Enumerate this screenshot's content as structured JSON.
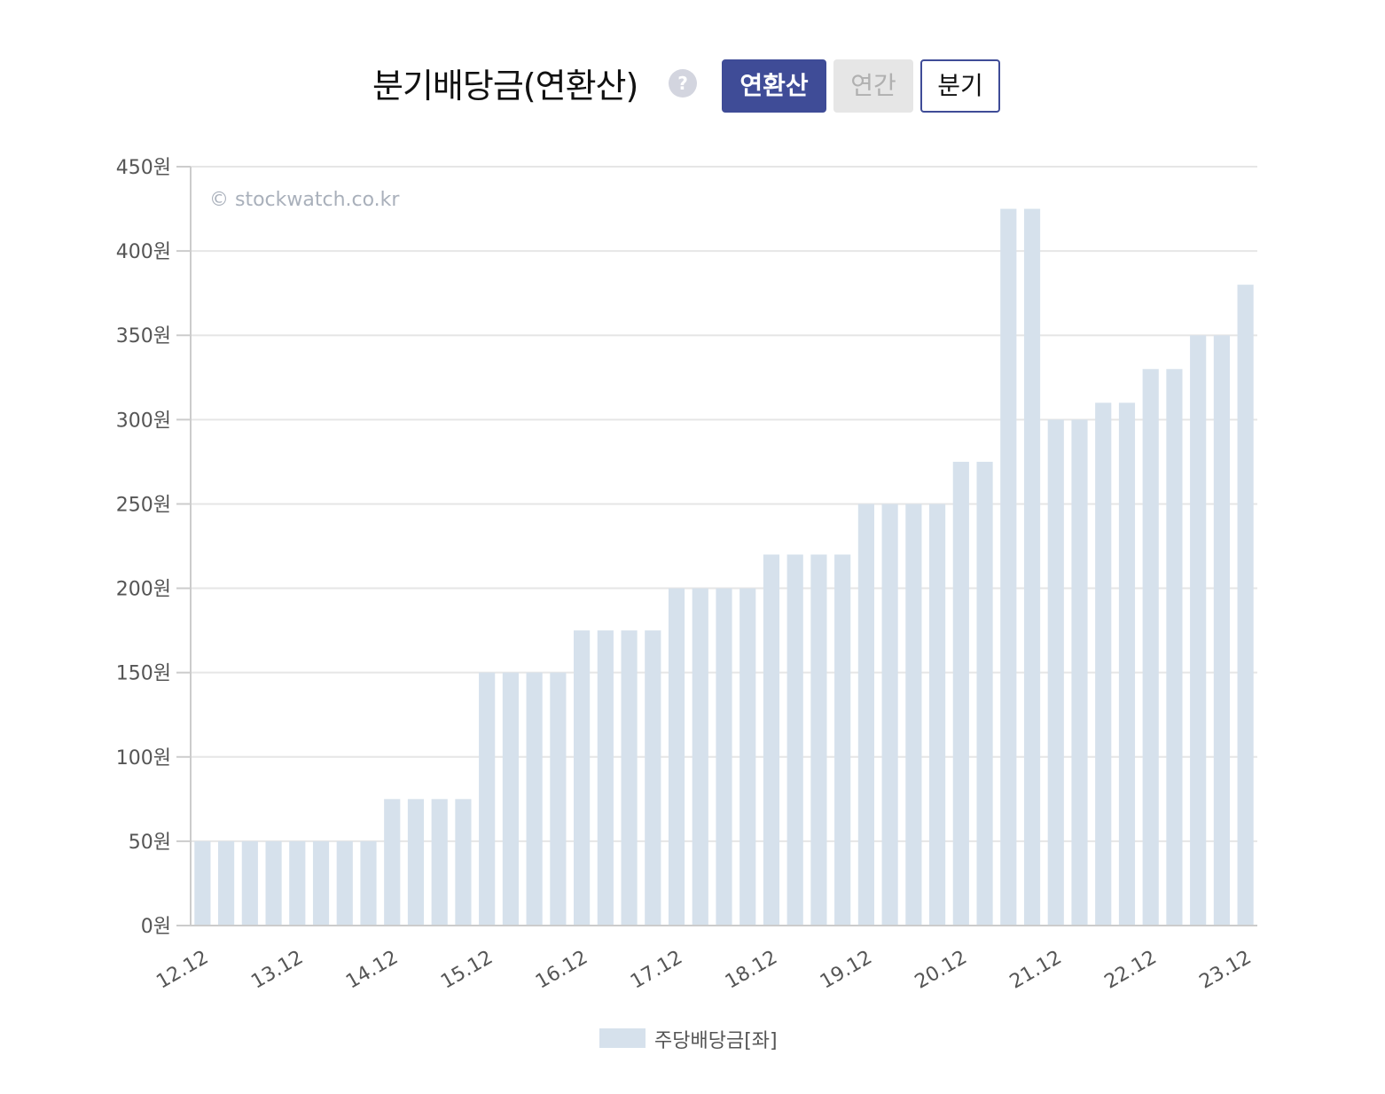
{
  "header": {
    "title": "분기배당금(연환산)",
    "help_icon": "?",
    "buttons": {
      "annualized": "연환산",
      "yearly": "연간",
      "quarterly": "분기"
    }
  },
  "watermark": "© stockwatch.co.kr",
  "colors": {
    "bar": "#d6e1ec",
    "active_button": "#3f4c97",
    "grid": "#e6e6e6",
    "axis_text": "#555555"
  },
  "chart_data": {
    "type": "bar",
    "y_tick_labels": [
      "0원",
      "50원",
      "100원",
      "150원",
      "200원",
      "250원",
      "300원",
      "350원",
      "400원",
      "450원"
    ],
    "x_tick_labels": [
      "12.12",
      "13.12",
      "14.12",
      "15.12",
      "16.12",
      "17.12",
      "18.12",
      "19.12",
      "20.12",
      "21.12",
      "22.12",
      "23.12"
    ],
    "ylim": [
      0,
      450
    ],
    "grid": true,
    "legend_position": "bottom",
    "series": [
      {
        "name": "주당배당금[좌]",
        "values": [
          50,
          50,
          50,
          50,
          50,
          50,
          50,
          50,
          75,
          75,
          75,
          75,
          150,
          150,
          150,
          150,
          175,
          175,
          175,
          175,
          200,
          200,
          200,
          200,
          220,
          220,
          220,
          220,
          250,
          250,
          250,
          250,
          275,
          275,
          425,
          425,
          300,
          300,
          310,
          310,
          330,
          330,
          350,
          350,
          380
        ]
      }
    ]
  }
}
